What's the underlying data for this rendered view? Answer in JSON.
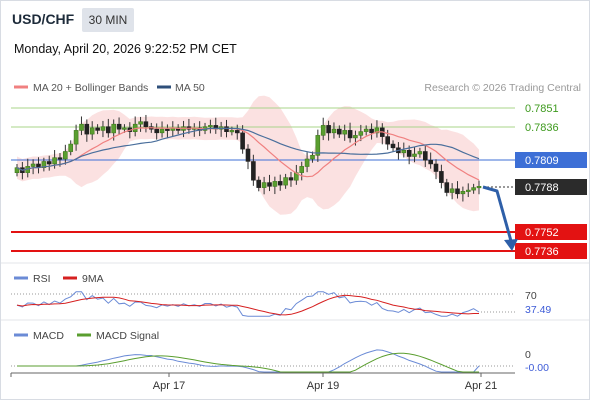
{
  "header": {
    "symbol": "USD/CHF",
    "timeframe": "30 MIN",
    "datetime": "Monday, April 20, 2026 9:22:52 PM CET"
  },
  "legend": {
    "ma20_label": "MA 20 + Bollinger Bands",
    "ma50_label": "MA 50",
    "credit": "Research © 2026 Trading Central"
  },
  "colors": {
    "ma20": "#f08080",
    "bollinger_fill": "#fadcdc",
    "ma50": "#4a6f9c",
    "green_level": "#92c96a",
    "blue_level": "#3d6fd6",
    "red_level": "#e31212",
    "arrow": "#2e5fa8",
    "last_price_tag": "#2b2b2b",
    "rsi": "#6b8bd6",
    "rsi_9ma": "#d62020",
    "macd": "#6b8bd6",
    "macd_signal": "#5a9e2f"
  },
  "levels": {
    "green": [
      "0.7851",
      "0.7836"
    ],
    "blue": "0.7809",
    "last": "0.7788",
    "red": [
      "0.7752",
      "0.7736"
    ]
  },
  "x_axis": [
    "Apr 17",
    "Apr 19",
    "Apr 21"
  ],
  "rsi": {
    "label": "RSI",
    "ma_label": "9MA",
    "level": "70",
    "value": "37.49"
  },
  "macd": {
    "label": "MACD",
    "signal_label": "MACD Signal",
    "level": "0",
    "value": "-0.00"
  },
  "chart_data": {
    "type": "candlestick",
    "symbol": "USD/CHF",
    "timeframe": "30 MIN",
    "ylim": [
      0.7724,
      0.786
    ],
    "x_ticks": [
      "Apr 17",
      "Apr 19",
      "Apr 21"
    ],
    "close": [
      0.7803,
      0.7799,
      0.7804,
      0.7806,
      0.7803,
      0.7808,
      0.7806,
      0.7811,
      0.781,
      0.7816,
      0.7822,
      0.7833,
      0.7838,
      0.783,
      0.7835,
      0.7833,
      0.7836,
      0.7831,
      0.7838,
      0.7834,
      0.7835,
      0.7832,
      0.7838,
      0.784,
      0.7836,
      0.7834,
      0.7831,
      0.7834,
      0.7833,
      0.7835,
      0.7833,
      0.7836,
      0.7834,
      0.7835,
      0.7833,
      0.7836,
      0.7837,
      0.7834,
      0.7836,
      0.7832,
      0.7833,
      0.7831,
      0.7818,
      0.7808,
      0.7793,
      0.7787,
      0.7791,
      0.7788,
      0.7792,
      0.7789,
      0.7795,
      0.7793,
      0.7799,
      0.7804,
      0.781,
      0.7813,
      0.7829,
      0.7837,
      0.7831,
      0.7834,
      0.783,
      0.7833,
      0.7827,
      0.7829,
      0.7832,
      0.7834,
      0.7831,
      0.7835,
      0.7828,
      0.7822,
      0.7819,
      0.7815,
      0.7817,
      0.7812,
      0.7814,
      0.7816,
      0.7809,
      0.7806,
      0.78,
      0.7791,
      0.7783,
      0.7786,
      0.7782,
      0.7784,
      0.7785,
      0.7787,
      0.7788
    ],
    "ma20_band": {
      "upper_max": 0.7853,
      "lower_min": 0.7776
    },
    "last_price": 0.7788,
    "resistance": [
      0.7851,
      0.7836
    ],
    "pivot": 0.7809,
    "support": [
      0.7752,
      0.7736
    ],
    "forecast": "bearish",
    "rsi": {
      "value": 37.49,
      "level": 70
    },
    "macd": {
      "value": -0.0,
      "level": 0
    }
  }
}
